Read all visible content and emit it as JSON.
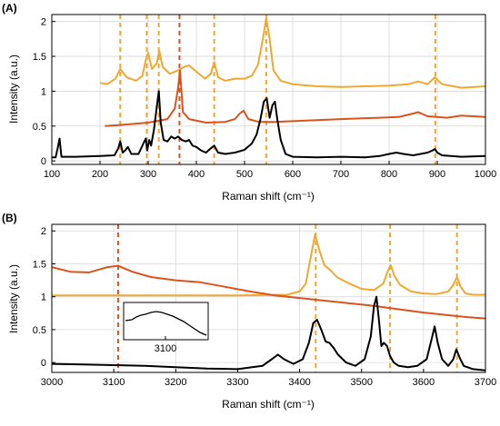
{
  "chart_data": [
    {
      "type": "line",
      "panel": "(A)",
      "xlabel": "Raman shift (cm⁻¹)",
      "ylabel": "Intensity (a.u.)",
      "xlim": [
        100,
        1000
      ],
      "ylim": [
        -0.05,
        2.1
      ],
      "xticks": [
        100,
        200,
        300,
        400,
        500,
        600,
        700,
        800,
        900,
        1000
      ],
      "yticks": [
        0,
        0.5,
        1,
        1.5,
        2
      ],
      "grid": true,
      "colors": {
        "yellow": "#f0a830",
        "orange": "#d9531e",
        "black": "#000000"
      },
      "markers": [
        {
          "x": 242,
          "color": "#f0a830"
        },
        {
          "x": 297,
          "color": "#f0a830"
        },
        {
          "x": 322,
          "color": "#f0a830"
        },
        {
          "x": 365,
          "color": "#d9531e"
        },
        {
          "x": 437,
          "color": "#f0a830"
        },
        {
          "x": 545,
          "color": "#f0a830"
        },
        {
          "x": 896,
          "color": "#f0a830"
        }
      ],
      "series": [
        {
          "color": "#f0a830",
          "x": [
            200,
            215,
            232,
            242,
            255,
            275,
            288,
            295,
            300,
            308,
            318,
            323,
            330,
            345,
            362,
            375,
            385,
            400,
            418,
            430,
            437,
            445,
            460,
            480,
            500,
            515,
            528,
            538,
            545,
            552,
            560,
            575,
            600,
            650,
            700,
            750,
            800,
            840,
            860,
            880,
            895,
            910,
            950,
            1000
          ],
          "y": [
            1.12,
            1.1,
            1.18,
            1.32,
            1.2,
            1.15,
            1.22,
            1.45,
            1.55,
            1.32,
            1.4,
            1.58,
            1.35,
            1.25,
            1.3,
            1.35,
            1.37,
            1.28,
            1.18,
            1.25,
            1.42,
            1.2,
            1.15,
            1.18,
            1.18,
            1.22,
            1.38,
            1.75,
            2.05,
            1.75,
            1.3,
            1.15,
            1.1,
            1.07,
            1.06,
            1.07,
            1.08,
            1.1,
            1.14,
            1.1,
            1.2,
            1.1,
            1.05,
            1.07
          ]
        },
        {
          "color": "#d9531e",
          "x": [
            210,
            250,
            300,
            340,
            355,
            362,
            366,
            372,
            385,
            420,
            460,
            480,
            490,
            498,
            508,
            530,
            560,
            600,
            700,
            780,
            820,
            850,
            860,
            880,
            920,
            950,
            975,
            1000
          ],
          "y": [
            0.5,
            0.52,
            0.55,
            0.6,
            0.75,
            1.05,
            1.3,
            0.7,
            0.6,
            0.55,
            0.56,
            0.6,
            0.68,
            0.72,
            0.6,
            0.56,
            0.56,
            0.57,
            0.6,
            0.62,
            0.63,
            0.68,
            0.7,
            0.64,
            0.62,
            0.65,
            0.64,
            0.63
          ]
        },
        {
          "color": "#000000",
          "x": [
            100,
            108,
            112,
            116,
            120,
            150,
            200,
            230,
            238,
            242,
            247,
            252,
            258,
            265,
            280,
            290,
            295,
            298,
            302,
            306,
            312,
            318,
            322,
            326,
            332,
            340,
            348,
            355,
            362,
            370,
            378,
            385,
            392,
            400,
            410,
            420,
            430,
            437,
            445,
            460,
            480,
            500,
            515,
            525,
            533,
            540,
            546,
            552,
            558,
            563,
            568,
            575,
            585,
            600,
            650,
            700,
            750,
            780,
            800,
            815,
            830,
            850,
            880,
            890,
            895,
            900,
            910,
            950,
            1000
          ],
          "y": [
            0.05,
            0.05,
            0.18,
            0.32,
            0.06,
            0.06,
            0.07,
            0.08,
            0.18,
            0.28,
            0.12,
            0.15,
            0.2,
            0.1,
            0.1,
            0.25,
            0.32,
            0.15,
            0.3,
            0.22,
            0.45,
            0.78,
            1.0,
            0.55,
            0.3,
            0.28,
            0.35,
            0.32,
            0.35,
            0.3,
            0.28,
            0.3,
            0.22,
            0.2,
            0.15,
            0.12,
            0.18,
            0.22,
            0.12,
            0.1,
            0.12,
            0.16,
            0.25,
            0.38,
            0.6,
            0.85,
            0.9,
            0.62,
            0.8,
            0.85,
            0.6,
            0.3,
            0.1,
            0.06,
            0.05,
            0.06,
            0.05,
            0.07,
            0.1,
            0.12,
            0.1,
            0.08,
            0.12,
            0.15,
            0.17,
            0.12,
            0.08,
            0.06,
            0.07
          ]
        }
      ]
    },
    {
      "type": "line",
      "panel": "(B)",
      "xlabel": "Raman shift (cm⁻¹)",
      "ylabel": "Intensity (a.u.)",
      "xlim": [
        3000,
        3700
      ],
      "ylim": [
        -0.15,
        2.1
      ],
      "xticks": [
        3000,
        3100,
        3200,
        3300,
        3400,
        3500,
        3600,
        3700
      ],
      "yticks": [
        0,
        0.5,
        1,
        1.5,
        2
      ],
      "grid": true,
      "markers": [
        {
          "x": 3107,
          "color": "#d9531e"
        },
        {
          "x": 3426,
          "color": "#f0a830"
        },
        {
          "x": 3546,
          "color": "#f0a830"
        },
        {
          "x": 3654,
          "color": "#f0a830"
        }
      ],
      "inset": {
        "tick_label": "3100"
      },
      "series": [
        {
          "color": "#f0a830",
          "x": [
            3000,
            3100,
            3200,
            3300,
            3380,
            3400,
            3410,
            3418,
            3425,
            3432,
            3440,
            3450,
            3460,
            3480,
            3500,
            3520,
            3535,
            3542,
            3547,
            3553,
            3562,
            3580,
            3600,
            3620,
            3640,
            3648,
            3654,
            3660,
            3668,
            3680,
            3700
          ],
          "y": [
            1.02,
            1.02,
            1.02,
            1.02,
            1.03,
            1.08,
            1.2,
            1.6,
            1.95,
            1.7,
            1.48,
            1.4,
            1.3,
            1.2,
            1.12,
            1.1,
            1.2,
            1.38,
            1.48,
            1.32,
            1.18,
            1.08,
            1.05,
            1.04,
            1.08,
            1.18,
            1.3,
            1.15,
            1.05,
            1.03,
            1.03
          ]
        },
        {
          "color": "#d9531e",
          "x": [
            3000,
            3030,
            3060,
            3090,
            3107,
            3130,
            3160,
            3200,
            3240,
            3280,
            3320,
            3360,
            3400,
            3440,
            3480,
            3520,
            3560,
            3600,
            3640,
            3670,
            3700
          ],
          "y": [
            1.45,
            1.38,
            1.37,
            1.45,
            1.47,
            1.38,
            1.3,
            1.25,
            1.22,
            1.15,
            1.08,
            1.02,
            0.98,
            0.94,
            0.9,
            0.86,
            0.81,
            0.76,
            0.72,
            0.69,
            0.67
          ]
        },
        {
          "color": "#000000",
          "x": [
            3000,
            3050,
            3100,
            3150,
            3200,
            3250,
            3300,
            3340,
            3355,
            3365,
            3375,
            3390,
            3405,
            3415,
            3422,
            3428,
            3435,
            3442,
            3448,
            3455,
            3462,
            3475,
            3490,
            3505,
            3515,
            3520,
            3524,
            3528,
            3532,
            3536,
            3541,
            3546,
            3552,
            3560,
            3575,
            3590,
            3605,
            3613,
            3618,
            3623,
            3630,
            3640,
            3648,
            3653,
            3658,
            3665,
            3680,
            3700
          ],
          "y": [
            -0.02,
            -0.03,
            -0.04,
            -0.05,
            -0.07,
            -0.09,
            -0.1,
            -0.05,
            0.05,
            0.12,
            0.05,
            -0.02,
            0.05,
            0.3,
            0.6,
            0.65,
            0.5,
            0.32,
            0.3,
            0.22,
            0.12,
            0.0,
            -0.05,
            0.05,
            0.4,
            0.85,
            1.0,
            0.65,
            0.25,
            0.3,
            0.25,
            0.1,
            0.0,
            -0.05,
            -0.07,
            -0.05,
            0.05,
            0.35,
            0.55,
            0.3,
            0.05,
            -0.05,
            0.05,
            0.2,
            0.08,
            -0.05,
            -0.1,
            -0.12
          ]
        }
      ]
    }
  ],
  "panels": [
    {
      "label": "(A)",
      "xlabel": "Raman shift (cm⁻¹)",
      "ylabel": "Intensity (a.u.)",
      "xtick_labels": [
        "100",
        "200",
        "300",
        "400",
        "500",
        "600",
        "700",
        "800",
        "900",
        "1000"
      ],
      "ytick_labels": [
        "0",
        "0.5",
        "1",
        "1.5",
        "2"
      ]
    },
    {
      "label": "(B)",
      "xlabel": "Raman shift (cm⁻¹)",
      "ylabel": "Intensity (a.u.)",
      "xtick_labels": [
        "3000",
        "3100",
        "3200",
        "3300",
        "3400",
        "3500",
        "3600",
        "3700"
      ],
      "ytick_labels": [
        "0",
        "0.5",
        "1",
        "1.5",
        "2"
      ],
      "inset_tick_label": "3100"
    }
  ]
}
